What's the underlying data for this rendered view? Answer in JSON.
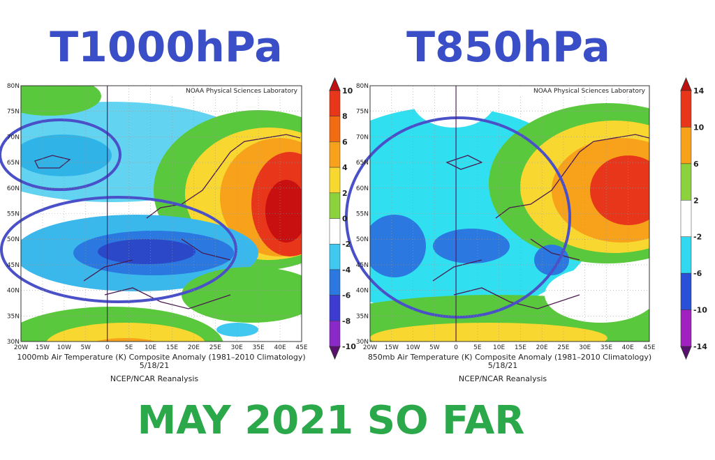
{
  "footer": "MAY 2021 SO FAR",
  "axes": {
    "lat": [
      "80N",
      "75N",
      "70N",
      "65N",
      "60N",
      "55N",
      "50N",
      "45N",
      "40N",
      "35N",
      "30N"
    ],
    "lon": [
      "20W",
      "15W",
      "10W",
      "5W",
      "0",
      "5E",
      "10E",
      "15E",
      "20E",
      "25E",
      "30E",
      "35E",
      "40E",
      "45E"
    ]
  },
  "maps": [
    {
      "title": "T1000hPa",
      "credit": "NOAA Physical Sciences Laboratory",
      "caption": [
        "1000mb Air Temperature (K) Composite Anomaly (1981–2010 Climatology)",
        "5/18/21",
        "NCEP/NCAR Reanalysis"
      ],
      "colorbar": {
        "labels": [
          10,
          8,
          6,
          4,
          2,
          0,
          -2,
          -4,
          -6,
          -8,
          -10
        ],
        "colors": [
          "#e8361a",
          "#f26a12",
          "#f8a21c",
          "#f8d830",
          "#8cd23c",
          "#ffffff",
          "#40c8f0",
          "#2a78e0",
          "#3c3cd0",
          "#8a28c8"
        ]
      }
    },
    {
      "title": "T850hPa",
      "credit": "NOAA Physical Sciences Laboratory",
      "caption": [
        "850mb Air Temperature (K) Composite Anomaly (1981–2010 Climatology)",
        "5/18/21",
        "NCEP/NCAR Reanalysis"
      ],
      "colorbar": {
        "labels": [
          14,
          10,
          6,
          2,
          -2,
          -6,
          -10,
          -14
        ],
        "colors": [
          "#e8361a",
          "#f8a21c",
          "#8cd23c",
          "#ffffff",
          "#30d8f0",
          "#2a50d8",
          "#a020c0"
        ]
      }
    }
  ]
}
